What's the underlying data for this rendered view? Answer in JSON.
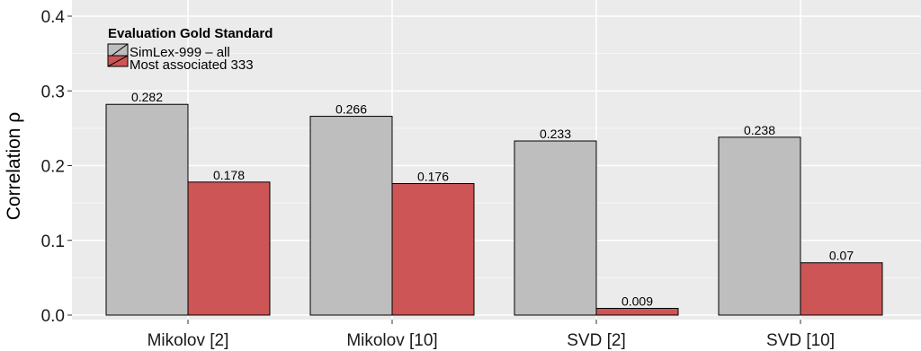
{
  "chart_data": {
    "type": "bar",
    "title": "",
    "xlabel": "",
    "ylabel": "Correlation ρ",
    "ylim": [
      0,
      0.4
    ],
    "yticks": [
      "0.0",
      "0.1",
      "0.2",
      "0.3",
      "0.4"
    ],
    "categories": [
      "Mikolov [2]",
      "Mikolov [10]",
      "SVD [2]",
      "SVD [10]"
    ],
    "series": [
      {
        "name": "SimLex-999 – all",
        "color": "#bebebe",
        "values": [
          0.282,
          0.266,
          0.233,
          0.238
        ],
        "labels": [
          "0.282",
          "0.266",
          "0.233",
          "0.238"
        ]
      },
      {
        "name": "Most associated 333",
        "color": "#cd5555",
        "values": [
          0.178,
          0.176,
          0.009,
          0.07
        ],
        "labels": [
          "0.178",
          "0.176",
          "0.009",
          "0.07"
        ]
      }
    ],
    "legend": {
      "title": "Evaluation Gold Standard",
      "position": "top-left"
    },
    "grid": true,
    "background": "#ebebeb"
  }
}
